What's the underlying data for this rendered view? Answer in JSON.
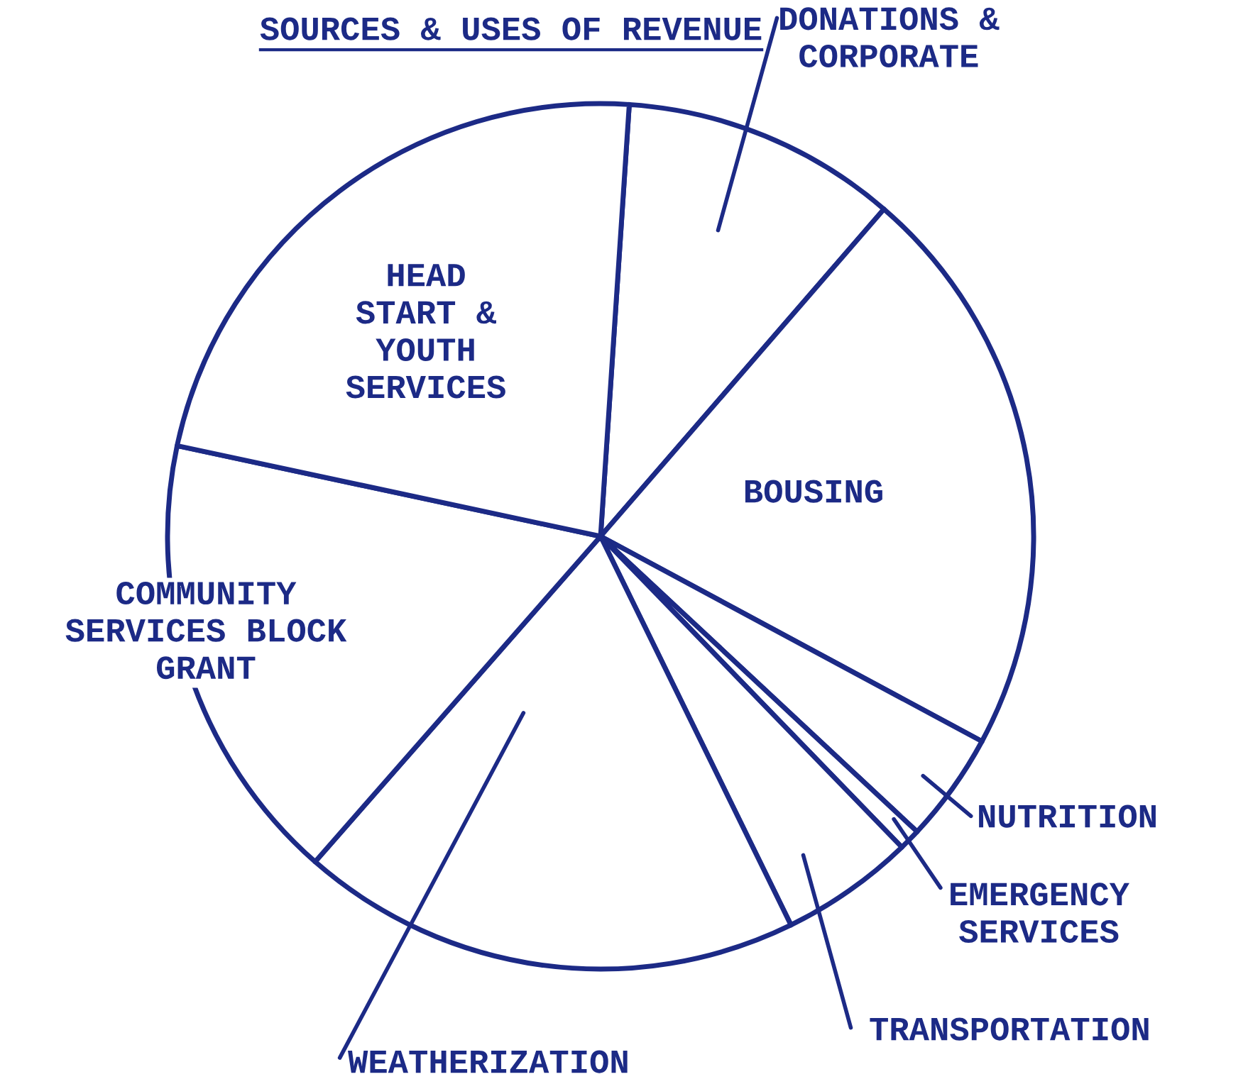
{
  "chart_data": {
    "type": "pie",
    "title": "SOURCES & USES OF REVENUE",
    "categories": [
      "DONATIONS &\nCORPORATE",
      "BOUSING",
      "NUTRITION",
      "EMERGENCY\nSERVICES",
      "TRANSPORTATION",
      "WEATHERIZATION",
      "COMMUNITY\nSERVICES BLOCK\nGRANT",
      "HEAD\nSTART &\nYOUTH\nSERVICES"
    ],
    "values": [
      10.3,
      21.5,
      4.1,
      0.8,
      5.0,
      18.7,
      16.9,
      22.7
    ],
    "colors": [
      "#ffffff",
      "#ffffff",
      "#ffffff",
      "#ffffff",
      "#ffffff",
      "#ffffff",
      "#ffffff",
      "#ffffff"
    ],
    "legend": false
  }
}
